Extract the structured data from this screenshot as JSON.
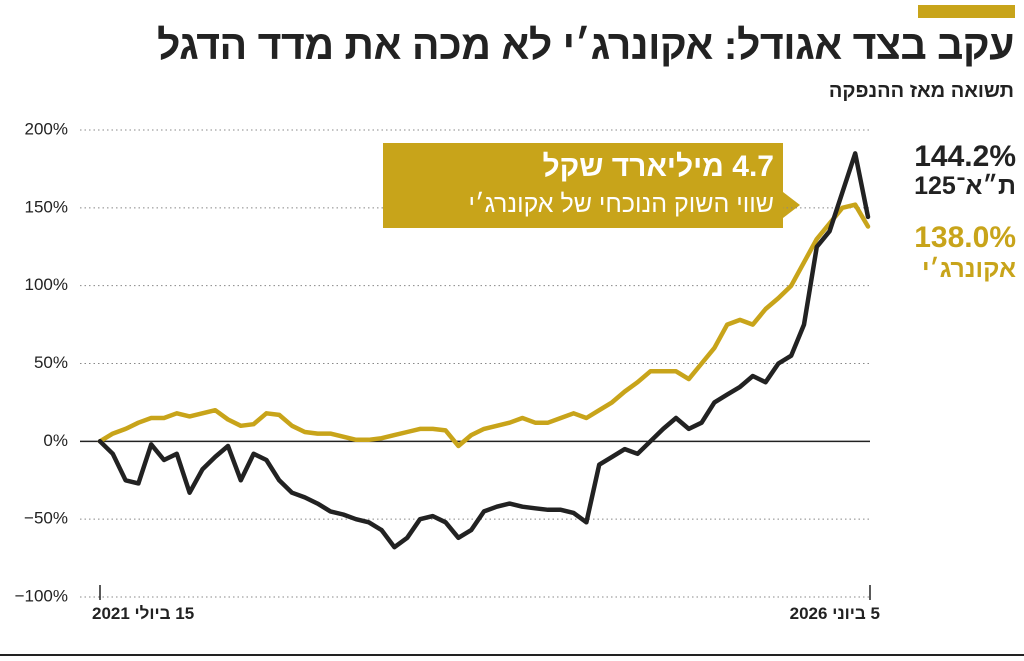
{
  "title": "עקב בצד אגודל: אקונרג׳י לא מכה את מדד הדגל",
  "subtitle": "תשואה מאז ההנפקה",
  "chart_data": {
    "type": "line",
    "categories": [
      "15 ביולי 2021",
      null,
      null,
      null,
      null,
      null,
      null,
      null,
      null,
      null,
      null,
      null,
      null,
      null,
      null,
      null,
      null,
      null,
      null,
      null,
      null,
      null,
      null,
      null,
      null,
      null,
      null,
      null,
      null,
      null,
      null,
      null,
      null,
      null,
      null,
      null,
      null,
      null,
      null,
      null,
      null,
      null,
      null,
      null,
      null,
      null,
      null,
      null,
      null,
      null,
      null,
      null,
      null,
      null,
      null,
      null,
      null,
      null,
      null,
      null,
      "5 ביוני 2026"
    ],
    "ylim": [
      -100,
      200
    ],
    "yticks": [
      {
        "value": 200,
        "label": "200%"
      },
      {
        "value": 150,
        "label": "150%"
      },
      {
        "value": 100,
        "label": "100%"
      },
      {
        "value": 50,
        "label": "50%"
      },
      {
        "value": 0,
        "label": "0%"
      },
      {
        "value": -50,
        "label": "−50%"
      },
      {
        "value": -100,
        "label": "−100%"
      }
    ],
    "grid": true,
    "series": [
      {
        "name": "ת״א־125",
        "color": "#222222",
        "end_label": {
          "value": 144.2,
          "label": "144.2%"
        },
        "values": [
          0,
          -8,
          -25,
          -27,
          -2,
          -12,
          -8,
          -33,
          -18,
          -10,
          -3,
          -25,
          -8,
          -12,
          -25,
          -33,
          -36,
          -40,
          -45,
          -47,
          -50,
          -52,
          -57,
          -68,
          -62,
          -50,
          -48,
          -52,
          -62,
          -57,
          -45,
          -42,
          -40,
          -42,
          -43,
          -44,
          -44,
          -46,
          -52,
          -15,
          -10,
          -5,
          -8,
          0,
          8,
          15,
          8,
          12,
          25,
          30,
          35,
          42,
          38,
          50,
          55,
          75,
          125,
          135,
          160,
          185,
          144.2
        ]
      },
      {
        "name": "אקונרג׳י",
        "color": "#c8a41a",
        "end_label": {
          "value": 138.0,
          "label": "138.0%"
        },
        "values": [
          0,
          5,
          8,
          12,
          15,
          15,
          18,
          16,
          18,
          20,
          14,
          10,
          11,
          18,
          17,
          10,
          6,
          5,
          5,
          3,
          1,
          1,
          2,
          4,
          6,
          8,
          8,
          7,
          -3,
          4,
          8,
          10,
          12,
          15,
          12,
          12,
          15,
          18,
          15,
          20,
          25,
          32,
          38,
          45,
          45,
          45,
          40,
          50,
          60,
          75,
          78,
          75,
          85,
          92,
          100,
          115,
          130,
          140,
          150,
          152,
          138.0
        ]
      }
    ],
    "annotation": {
      "title": "4.7 מיליארד שקל",
      "text": "שווי השוק הנוכחי של אקונרג׳י"
    }
  }
}
